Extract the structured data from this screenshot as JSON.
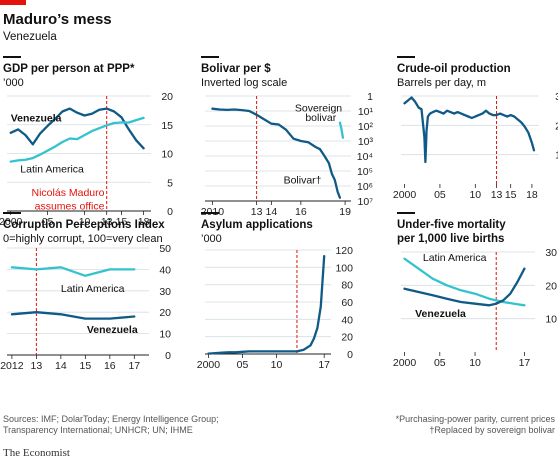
{
  "header": {
    "title": "Maduro’s mess",
    "subtitle": "Venezuela"
  },
  "footer": {
    "sources_line1": "Sources: IMF; DolarToday; Energy Intelligence Group;",
    "sources_line2": "Transparency International; UNHCR; UN; IHME",
    "note1": "*Purchasing-power parity, current prices",
    "note2": "†Replaced by sovereign bolivar",
    "brand": "The Economist"
  },
  "colors": {
    "venezuela": "#0f5a86",
    "latin_america": "#35c2cf",
    "event_line": "#e3120b",
    "grid": "#d4dde4",
    "brand_flag": "#e3120b"
  },
  "chart_data": [
    {
      "id": "gdp",
      "type": "line",
      "title": "GDP per person at PPP*",
      "subtitle": "’000",
      "xlim": [
        1999.5,
        2019
      ],
      "ylim": [
        0,
        20
      ],
      "yticks": [
        0,
        5,
        10,
        15,
        20
      ],
      "xticks": [
        {
          "v": 2000,
          "label": "2000"
        },
        {
          "v": 2005,
          "label": "05"
        },
        {
          "v": 2010,
          "label": "10"
        },
        {
          "v": 2013,
          "label": "13"
        },
        {
          "v": 2015,
          "label": "15"
        },
        {
          "v": 2018,
          "label": "18"
        }
      ],
      "event_x": 2013,
      "annotations": [
        {
          "text": "Venezuela",
          "x": 2000,
          "y": 15.6,
          "color": "#111",
          "bold": true,
          "anchor": "start"
        },
        {
          "text": "Latin America",
          "x": 2001.3,
          "y": 6.7,
          "color": "#111",
          "bold": false,
          "anchor": "start"
        },
        {
          "text": "Nicolás Maduro",
          "x": 2012.7,
          "y": 2.6,
          "color": "#e3120b",
          "bold": false,
          "anchor": "end"
        },
        {
          "text": "assumes office",
          "x": 2012.7,
          "y": 0.3,
          "color": "#e3120b",
          "bold": false,
          "anchor": "end"
        }
      ],
      "series": [
        {
          "name": "Venezuela",
          "color": "#0f5a86",
          "x": [
            2000,
            2001,
            2002,
            2003,
            2004,
            2005,
            2006,
            2007,
            2008,
            2009,
            2010,
            2011,
            2012,
            2013,
            2014,
            2015,
            2016,
            2017,
            2018
          ],
          "y": [
            13.6,
            14.2,
            13.2,
            11.6,
            13.5,
            14.8,
            16.0,
            17.3,
            17.8,
            17.1,
            16.6,
            16.9,
            17.6,
            17.8,
            17.3,
            16.3,
            14.2,
            12.3,
            10.9
          ]
        },
        {
          "name": "Latin America",
          "color": "#35c2cf",
          "x": [
            2000,
            2001,
            2002,
            2003,
            2004,
            2005,
            2006,
            2007,
            2008,
            2009,
            2010,
            2011,
            2012,
            2013,
            2014,
            2015,
            2016,
            2017,
            2018
          ],
          "y": [
            8.6,
            8.8,
            8.9,
            9.2,
            9.8,
            10.5,
            11.2,
            12.0,
            12.6,
            12.5,
            13.2,
            13.9,
            14.4,
            14.9,
            15.3,
            15.4,
            15.4,
            15.8,
            16.2
          ]
        }
      ]
    },
    {
      "id": "bolivar",
      "type": "line",
      "title": "Bolivar per $",
      "subtitle": "Inverted log scale",
      "log_scale": true,
      "inverted": true,
      "xlim": [
        2009.5,
        2019.4
      ],
      "ylim": [
        1,
        10000000
      ],
      "yticks": [
        {
          "v": 1,
          "label": "1"
        },
        {
          "v": 10,
          "label": "10¹"
        },
        {
          "v": 100,
          "label": "10²"
        },
        {
          "v": 1000,
          "label": "10³"
        },
        {
          "v": 10000,
          "label": "10⁴"
        },
        {
          "v": 100000,
          "label": "10⁵"
        },
        {
          "v": 1000000,
          "label": "10⁶"
        },
        {
          "v": 10000000,
          "label": "10⁷"
        }
      ],
      "xticks": [
        {
          "v": 2010,
          "label": "2010"
        },
        {
          "v": 2013,
          "label": "13"
        },
        {
          "v": 2014,
          "label": "14"
        },
        {
          "v": 2016,
          "label": "16"
        },
        {
          "v": 2019,
          "label": "19"
        }
      ],
      "event_x": 2013,
      "annotations": [
        {
          "text": "Sovereign",
          "x": 2018.8,
          "y": 10.5,
          "color": "#111",
          "bold": false,
          "anchor": "end"
        },
        {
          "text": "bolivar",
          "x": 2018.4,
          "y": 45,
          "color": "#111",
          "bold": false,
          "anchor": "end"
        },
        {
          "text": "Bolivar†",
          "x": 2017.4,
          "y": 700000,
          "color": "#111",
          "bold": false,
          "anchor": "end"
        }
      ],
      "series": [
        {
          "name": "Bolivar",
          "color": "#0f5a86",
          "x": [
            2010,
            2010.5,
            2011,
            2011.5,
            2012,
            2012.5,
            2013,
            2013.5,
            2014,
            2014.5,
            2015,
            2015.5,
            2016,
            2016.5,
            2017,
            2017.3,
            2017.6,
            2017.9,
            2018.1,
            2018.3,
            2018.5,
            2018.65
          ],
          "y": [
            7,
            8,
            8.5,
            8,
            8.7,
            10,
            18,
            35,
            70,
            80,
            180,
            700,
            1000,
            1200,
            2500,
            3500,
            10000,
            30000,
            150000,
            400000,
            2500000,
            6000000
          ]
        },
        {
          "name": "Sovereign bolivar",
          "color": "#35c2cf",
          "x": [
            2018.65,
            2018.75,
            2018.85
          ],
          "y": [
            60,
            150,
            600
          ]
        }
      ]
    },
    {
      "id": "oil",
      "type": "line",
      "title": "Crude-oil production",
      "subtitle": "Barrels per day, m",
      "xlim": [
        1999.5,
        2019
      ],
      "ylim": [
        0,
        3
      ],
      "yticks": [
        1,
        2,
        3
      ],
      "xticks": [
        {
          "v": 2000,
          "label": "2000"
        },
        {
          "v": 2005,
          "label": "05"
        },
        {
          "v": 2010,
          "label": "10"
        },
        {
          "v": 2013,
          "label": "13"
        },
        {
          "v": 2015,
          "label": "15"
        },
        {
          "v": 2018,
          "label": "18"
        }
      ],
      "event_x": 2013,
      "annotations": [],
      "series": [
        {
          "name": "Venezuela",
          "color": "#0f5a86",
          "x": [
            2000,
            2000.5,
            2001,
            2001.5,
            2002,
            2002.4,
            2002.8,
            2002.95,
            2003.1,
            2003.3,
            2003.6,
            2004,
            2004.5,
            2005,
            2005.5,
            2006,
            2006.5,
            2007,
            2007.5,
            2008,
            2008.5,
            2009,
            2009.5,
            2010,
            2010.5,
            2011,
            2011.5,
            2012,
            2012.5,
            2013,
            2013.5,
            2014,
            2014.5,
            2015,
            2015.5,
            2016,
            2016.5,
            2017,
            2017.5,
            2018,
            2018.3
          ],
          "y": [
            2.75,
            2.85,
            2.95,
            2.8,
            2.6,
            2.55,
            1.6,
            0.75,
            1.8,
            2.3,
            2.4,
            2.45,
            2.5,
            2.45,
            2.4,
            2.5,
            2.45,
            2.4,
            2.45,
            2.4,
            2.35,
            2.3,
            2.25,
            2.3,
            2.35,
            2.4,
            2.5,
            2.4,
            2.35,
            2.35,
            2.4,
            2.35,
            2.3,
            2.35,
            2.3,
            2.2,
            2.1,
            1.95,
            1.75,
            1.4,
            1.15
          ]
        }
      ]
    },
    {
      "id": "cpi",
      "type": "line",
      "title": "Corruption Perceptions Index",
      "subtitle": "0=highly corrupt, 100=very clean",
      "xlim": [
        2011.8,
        2017.6
      ],
      "ylim": [
        0,
        50
      ],
      "yticks": [
        0,
        10,
        20,
        30,
        40,
        50
      ],
      "xticks": [
        {
          "v": 2012,
          "label": "2012"
        },
        {
          "v": 2013,
          "label": "13"
        },
        {
          "v": 2014,
          "label": "14"
        },
        {
          "v": 2015,
          "label": "15"
        },
        {
          "v": 2016,
          "label": "16"
        },
        {
          "v": 2017,
          "label": "17"
        }
      ],
      "event_x": 2013,
      "annotations": [
        {
          "text": "Latin America",
          "x": 2015.3,
          "y": 29.5,
          "color": "#111",
          "bold": false,
          "anchor": "middle"
        },
        {
          "text": "Venezuela",
          "x": 2016.1,
          "y": 10.3,
          "color": "#111",
          "bold": true,
          "anchor": "middle"
        }
      ],
      "series": [
        {
          "name": "Latin America",
          "color": "#35c2cf",
          "x": [
            2012,
            2013,
            2014,
            2015,
            2016,
            2017
          ],
          "y": [
            41,
            40,
            41,
            37,
            40,
            40
          ]
        },
        {
          "name": "Venezuela",
          "color": "#0f5a86",
          "x": [
            2012,
            2013,
            2014,
            2015,
            2016,
            2017
          ],
          "y": [
            19,
            20,
            19,
            17,
            17,
            18
          ]
        }
      ]
    },
    {
      "id": "asylum",
      "type": "line",
      "title": "Asylum applications",
      "subtitle": "’000",
      "xlim": [
        1999.5,
        2018
      ],
      "ylim": [
        0,
        120
      ],
      "yticks": [
        0,
        20,
        40,
        60,
        80,
        100,
        120
      ],
      "xticks": [
        {
          "v": 2000,
          "label": "2000"
        },
        {
          "v": 2005,
          "label": "05"
        },
        {
          "v": 2010,
          "label": "10"
        },
        {
          "v": 2017,
          "label": "17"
        }
      ],
      "event_x": 2013,
      "annotations": [],
      "series": [
        {
          "name": "Venezuela",
          "color": "#0f5a86",
          "x": [
            2000,
            2001,
            2002,
            2003,
            2004,
            2005,
            2006,
            2007,
            2008,
            2009,
            2010,
            2011,
            2012,
            2013,
            2014,
            2015,
            2015.5,
            2016,
            2016.5,
            2017
          ],
          "y": [
            0.5,
            1,
            1.5,
            2,
            2,
            2.5,
            3,
            3,
            3,
            3,
            3,
            3,
            3,
            3,
            5,
            10,
            18,
            30,
            55,
            113
          ]
        }
      ]
    },
    {
      "id": "mortality",
      "type": "line",
      "title": "Under-five mortality",
      "title_line2": "per 1,000 live births",
      "xlim": [
        1999.5,
        2018.5
      ],
      "ylim": [
        0,
        30
      ],
      "yticks": [
        10,
        20,
        30
      ],
      "xticks": [
        {
          "v": 2000,
          "label": "2000"
        },
        {
          "v": 2005,
          "label": "05"
        },
        {
          "v": 2010,
          "label": "10"
        },
        {
          "v": 2017,
          "label": "17"
        }
      ],
      "event_x": 2013,
      "annotations": [
        {
          "text": "Latin America",
          "x": 2002.6,
          "y": 27.3,
          "color": "#111",
          "bold": false,
          "anchor": "start"
        },
        {
          "text": "Venezuela",
          "x": 2001.5,
          "y": 10.5,
          "color": "#111",
          "bold": true,
          "anchor": "start"
        }
      ],
      "series": [
        {
          "name": "Latin America",
          "color": "#35c2cf",
          "x": [
            2000,
            2002,
            2004,
            2006,
            2008,
            2010,
            2012,
            2014,
            2016,
            2017
          ],
          "y": [
            28,
            25,
            22,
            20,
            18.5,
            17.5,
            16,
            15,
            14.3,
            14
          ]
        },
        {
          "name": "Venezuela",
          "color": "#0f5a86",
          "x": [
            2000,
            2002,
            2004,
            2006,
            2008,
            2010,
            2012,
            2013,
            2014,
            2015,
            2016,
            2017
          ],
          "y": [
            19,
            18,
            17,
            16,
            15,
            14.5,
            14,
            14.5,
            15.5,
            17.5,
            21,
            25
          ]
        }
      ]
    }
  ]
}
